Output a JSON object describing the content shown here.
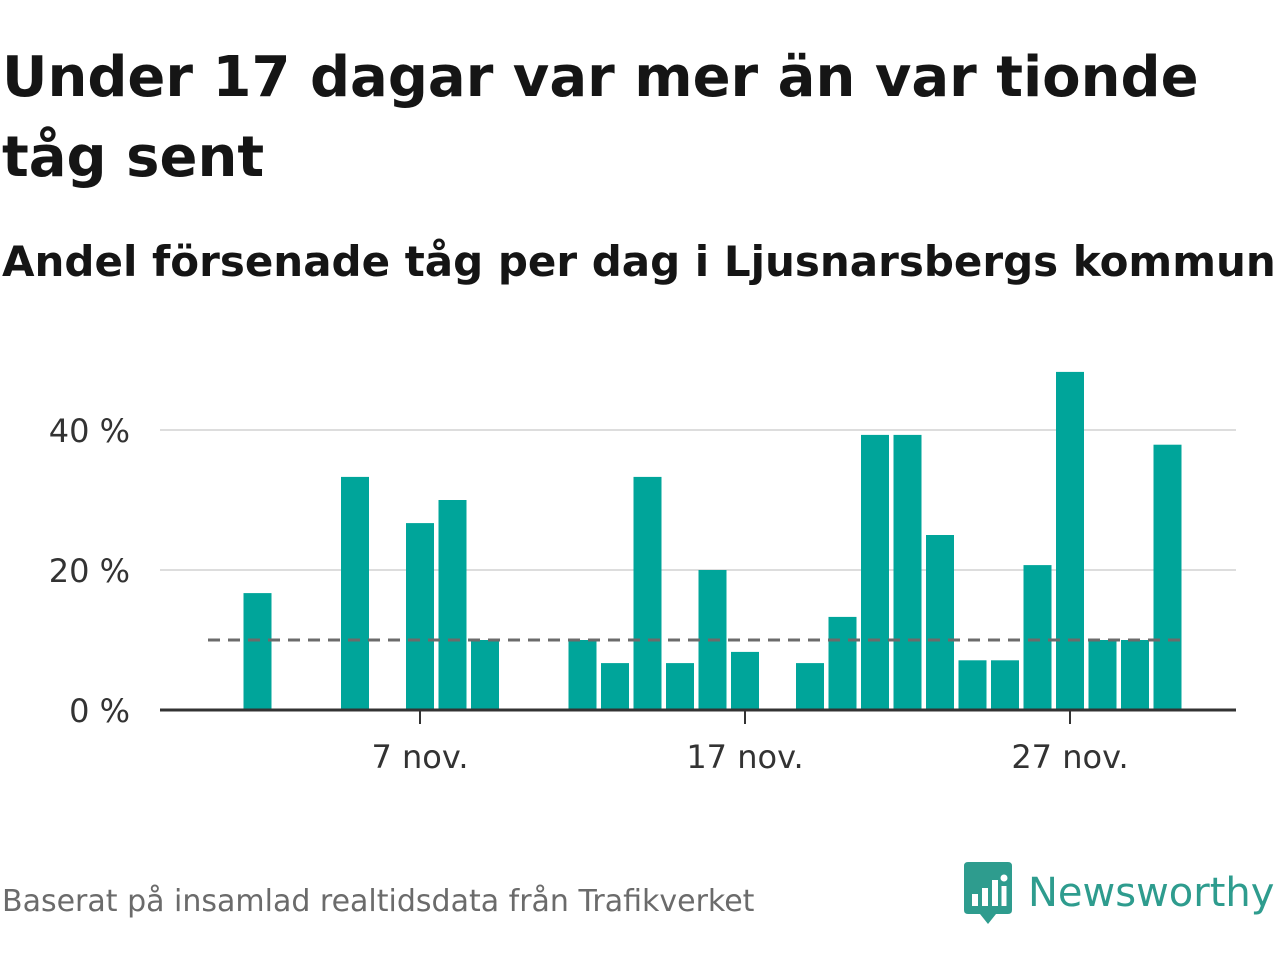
{
  "header": {
    "title": "Under 17 dagar var mer än var tionde tåg sent",
    "subtitle": "Andel försenade tåg per dag i Ljusnarsbergs kommun"
  },
  "footer": {
    "source": "Baserat på insamlad realtidsdata från Trafikverket",
    "brand": "Newsworthy"
  },
  "colors": {
    "bar": "#00a59a",
    "reference_line": "#6b6b6b",
    "grid": "#dddddd",
    "brand": "#2e9c8e"
  },
  "chart_data": {
    "type": "bar",
    "x_start_day": 1,
    "x_end_day": 30,
    "categories": [
      "1 nov.",
      "2 nov.",
      "3 nov.",
      "4 nov.",
      "5 nov.",
      "6 nov.",
      "7 nov.",
      "8 nov.",
      "9 nov.",
      "10 nov.",
      "11 nov.",
      "12 nov.",
      "13 nov.",
      "14 nov.",
      "15 nov.",
      "16 nov.",
      "17 nov.",
      "18 nov.",
      "19 nov.",
      "20 nov.",
      "21 nov.",
      "22 nov.",
      "23 nov.",
      "24 nov.",
      "25 nov.",
      "26 nov.",
      "27 nov.",
      "28 nov.",
      "29 nov.",
      "30 nov."
    ],
    "values": [
      null,
      16.7,
      null,
      null,
      33.3,
      null,
      26.7,
      30.0,
      10.0,
      null,
      null,
      10.0,
      6.7,
      33.3,
      6.7,
      20.0,
      8.3,
      null,
      6.7,
      13.3,
      39.3,
      39.3,
      25.0,
      7.1,
      7.1,
      20.7,
      48.3,
      10.0,
      10.0,
      37.9
    ],
    "ylim": [
      0,
      50
    ],
    "yticks": [
      0,
      20,
      40
    ],
    "ytick_labels": [
      "0 %",
      "20 %",
      "40 %"
    ],
    "xticks": [
      {
        "day": 7,
        "label": "7 nov."
      },
      {
        "day": 17,
        "label": "17 nov."
      },
      {
        "day": 27,
        "label": "27 nov."
      }
    ],
    "reference_line": 10,
    "grid": true
  }
}
